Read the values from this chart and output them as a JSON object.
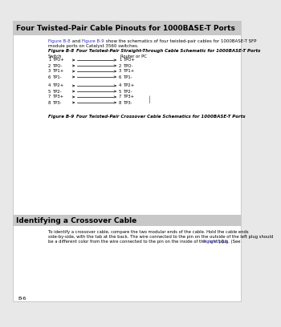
{
  "page_bg": "#e8e8e8",
  "content_bg": "#ffffff",
  "title": "Four Twisted-Pair Cable Pinouts for 1000BASE-T Ports",
  "title_bg": "#c8c8c8",
  "body_intro": [
    "Figure B-8",
    " and ",
    "Figure B-9",
    " show the schematics of four twisted-pair cables for 1000BASE-T SFP"
  ],
  "body_intro2": "module ports on Catalyst 3560 switches.",
  "fig8_label": "Figure B-8",
  "fig8_title": "     Four Twisted-Pair Straight-Through Cable Schematic for 1000BASE-T Ports",
  "col_switch": "Switch",
  "col_router": "Router or PC",
  "straight_pairs": [
    [
      "1",
      "TPO+",
      "1",
      "TPO+"
    ],
    [
      "2",
      "TPO-",
      "2",
      "TPO-"
    ],
    [
      "3",
      "TP1+",
      "3",
      "TP1+"
    ],
    [
      "6",
      "TP1-",
      "6",
      "TP1-"
    ],
    [
      "4",
      "TP2+",
      "4",
      "TP2+"
    ],
    [
      "5",
      "TP2-",
      "5",
      "TP2-"
    ],
    [
      "7",
      "TP3+",
      "7",
      "TP3+"
    ],
    [
      "8",
      "TP3-",
      "8",
      "TP3-"
    ]
  ],
  "fig9_label": "Figure B-9",
  "fig9_title": "     Four Twisted-Pair Crossover Cable Schematics for 1000BASE-T Ports",
  "section2_title": "Identifying a Crossover Cable",
  "section2_line1": "To identify a crossover cable, compare the two modular ends of the cable. Hold the cable ends",
  "section2_line2": "side-by-side, with the tab at the back. The wire connected to the pin on the outside of the left plug should",
  "section2_line3_before": "be a different color from the wire connected to the pin on the inside of the right plug. (See ",
  "section2_line3_link": "Figure B-10",
  "section2_line3_after": ".)",
  "footer": "B-6",
  "link_color": "#3333cc",
  "text_color": "#000000",
  "arrow_color": "#000000"
}
